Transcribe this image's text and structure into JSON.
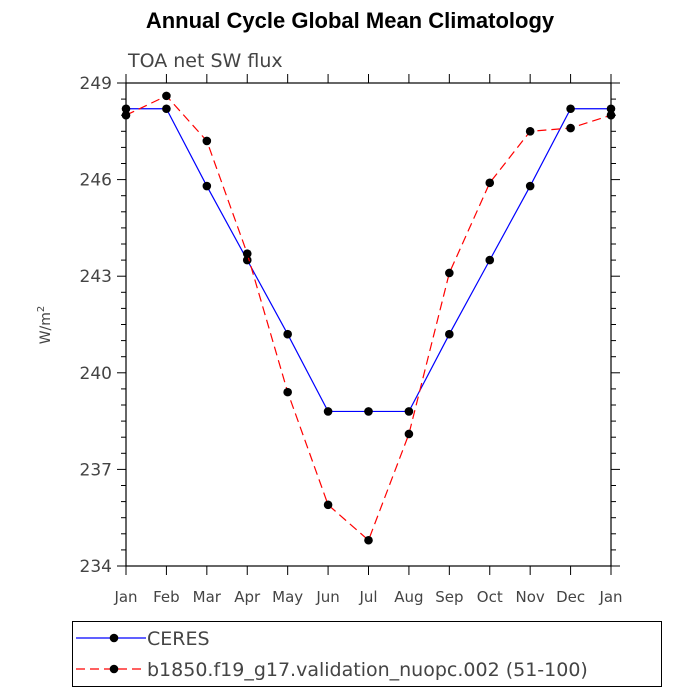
{
  "chart_data": {
    "type": "line",
    "title": "Annual Cycle Global Mean Climatology",
    "subtitle": "TOA net SW flux",
    "ylabel": "W/m",
    "ylabel_superscript": "2",
    "xlabel": "",
    "categories": [
      "Jan",
      "Feb",
      "Mar",
      "Apr",
      "May",
      "Jun",
      "Jul",
      "Aug",
      "Sep",
      "Oct",
      "Nov",
      "Dec",
      "Jan"
    ],
    "ylim": [
      234,
      249
    ],
    "yticks": [
      234,
      237,
      240,
      243,
      246,
      249
    ],
    "grid": false,
    "legend_position": "bottom",
    "series": [
      {
        "name": "CERES",
        "color": "#0000ff",
        "line_style": "solid",
        "marker": "filled-circle",
        "values": [
          248.2,
          248.2,
          245.8,
          243.5,
          241.2,
          238.8,
          238.8,
          238.8,
          241.2,
          243.5,
          245.8,
          248.2,
          248.2
        ]
      },
      {
        "name": "b1850.f19_g17.validation_nuopc.002 (51-100)",
        "color": "#ff0000",
        "line_style": "dashed",
        "marker": "filled-circle",
        "values": [
          248.0,
          248.6,
          247.2,
          243.7,
          239.4,
          235.9,
          234.8,
          238.1,
          243.1,
          245.9,
          247.5,
          247.6,
          248.0
        ]
      }
    ]
  }
}
